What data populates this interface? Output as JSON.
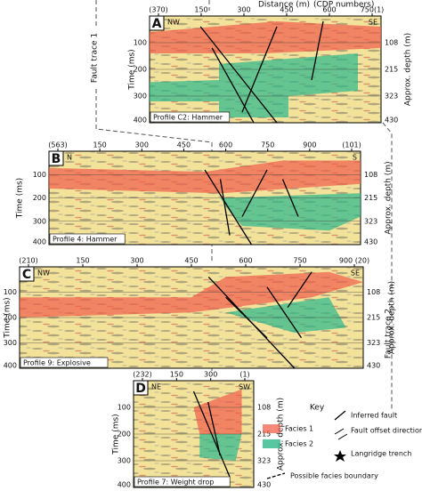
{
  "figure": {
    "fault_trace_1": "Fault trace 1",
    "fault_trace_2": "Fault trace 2",
    "distance_title": "Distance (m)",
    "cdp_title": "(CDP numbers)",
    "panels": [
      {
        "label": "A",
        "top_ticks": [
          "(370)",
          "150",
          "300",
          "450",
          "600",
          "750(1)"
        ],
        "directions": [
          "NW",
          "SE"
        ],
        "time_title": "Time (ms)",
        "time_ticks": [
          "100",
          "200",
          "300",
          "400"
        ],
        "depth_title": "Approx. depth (m)",
        "depth_ticks": [
          "108",
          "215",
          "323",
          "430"
        ],
        "caption": "Profile C2: Hammer"
      },
      {
        "label": "B",
        "top_ticks": [
          "(563)",
          "150",
          "300",
          "450",
          "600",
          "750",
          "900",
          "(101)"
        ],
        "directions": [
          "N",
          "S"
        ],
        "time_title": "Time (ms)",
        "time_ticks": [
          "100",
          "200",
          "300",
          "400"
        ],
        "depth_title": "Approx. depth (m)",
        "depth_ticks": [
          "108",
          "215",
          "323",
          "430"
        ],
        "caption": "Profile 4: Hammer"
      },
      {
        "label": "C",
        "top_ticks": [
          "(210)",
          "150",
          "300",
          "450",
          "600",
          "750",
          "900 (20)"
        ],
        "directions": [
          "NW",
          "SE"
        ],
        "time_title": "Time (ms)",
        "time_ticks": [
          "100",
          "200",
          "300",
          "400"
        ],
        "depth_title": "Approx. depth (m)",
        "depth_ticks": [
          "108",
          "215",
          "323",
          "430"
        ],
        "caption": "Profile 9: Explosive"
      },
      {
        "label": "D",
        "top_ticks": [
          "(232)",
          "150",
          "300",
          "(1)"
        ],
        "directions": [
          "NE",
          "SW"
        ],
        "time_title": "Time (ms)",
        "time_ticks": [
          "100",
          "200",
          "300",
          "400"
        ],
        "depth_title": "Approx. depth (m)",
        "depth_ticks": [
          "108",
          "215",
          "323",
          "430"
        ],
        "caption": "Profile 7: Weight drop"
      }
    ],
    "key": {
      "title": "Key",
      "items": [
        "Facies 1",
        "Facies 2",
        "Inferred fault",
        "Fault offset direction",
        "Langridge trench",
        "Possible facies boundary"
      ]
    }
  }
}
